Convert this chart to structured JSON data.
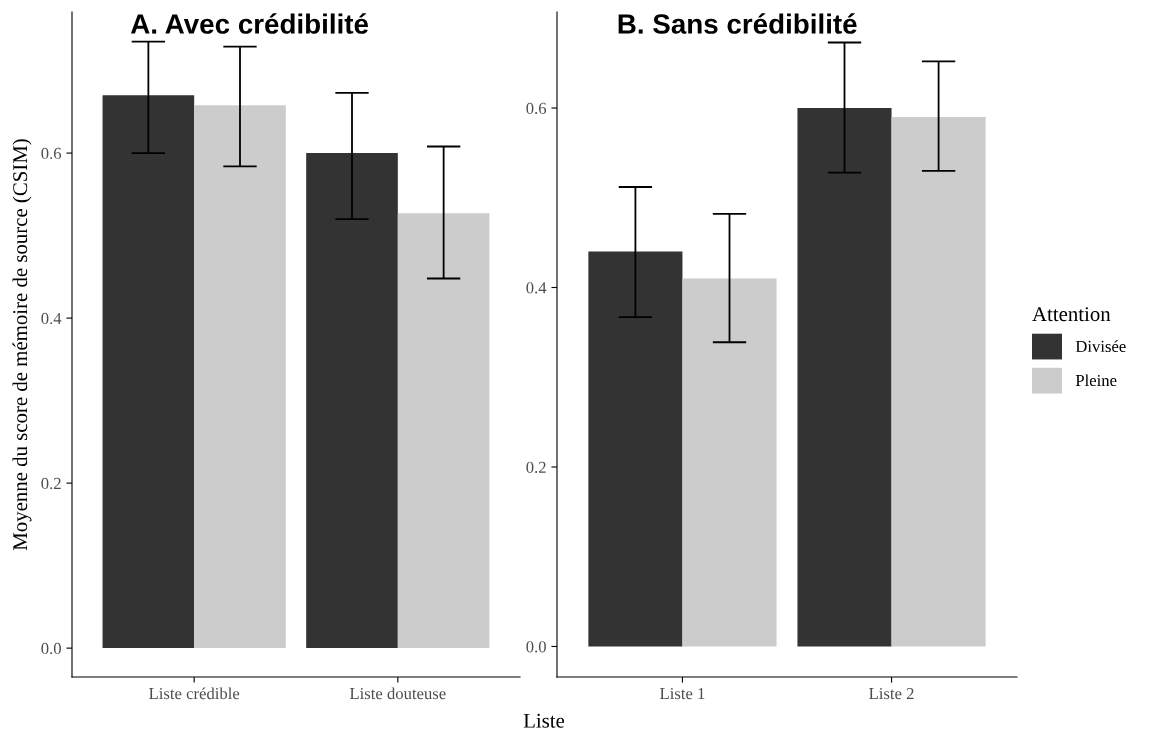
{
  "chart_data": [
    {
      "type": "bar",
      "title": "A. Avec crédibilité",
      "ylabel": "Moyenne du score de mémoire de source (CSIM)",
      "xlabel": "Liste",
      "categories": [
        "Liste crédible",
        "Liste douteuse"
      ],
      "legend_title": "Attention",
      "legend": "right",
      "series": [
        {
          "name": "Divisée",
          "color": "#333333",
          "values": [
            0.67,
            0.6
          ],
          "errors": [
            [
              0.6,
              0.735
            ],
            [
              0.52,
              0.673
            ]
          ]
        },
        {
          "name": "Pleine",
          "color": "#cccccc",
          "values": [
            0.658,
            0.527
          ],
          "errors": [
            [
              0.584,
              0.729
            ],
            [
              0.448,
              0.608
            ]
          ]
        }
      ],
      "ylim": [
        -0.035,
        0.771
      ],
      "yticks": [
        {
          "value": 0,
          "label": "0.0"
        },
        {
          "value": 0.2,
          "label": "0.2"
        },
        {
          "value": 0.4,
          "label": "0.4"
        },
        {
          "value": 0.6,
          "label": "0.6"
        }
      ],
      "grid": false
    },
    {
      "type": "bar",
      "title": "B. Sans crédibilité",
      "categories": [
        "Liste 1",
        "Liste 2"
      ],
      "series": [
        {
          "color": "#333333",
          "values": [
            0.44,
            0.6
          ],
          "errors": [
            [
              0.367,
              0.512
            ],
            [
              0.528,
              0.673
            ]
          ]
        },
        {
          "color": "#cccccc",
          "values": [
            0.41,
            0.59
          ],
          "errors": [
            [
              0.339,
              0.482
            ],
            [
              0.53,
              0.652
            ]
          ]
        }
      ],
      "ylim": [
        -0.034,
        0.707
      ],
      "yticks": [
        {
          "value": 0,
          "label": "0.0"
        },
        {
          "value": 0.2,
          "label": "0.2"
        },
        {
          "value": 0.4,
          "label": "0.4"
        },
        {
          "value": 0.6,
          "label": "0.6"
        }
      ],
      "grid": false
    }
  ]
}
